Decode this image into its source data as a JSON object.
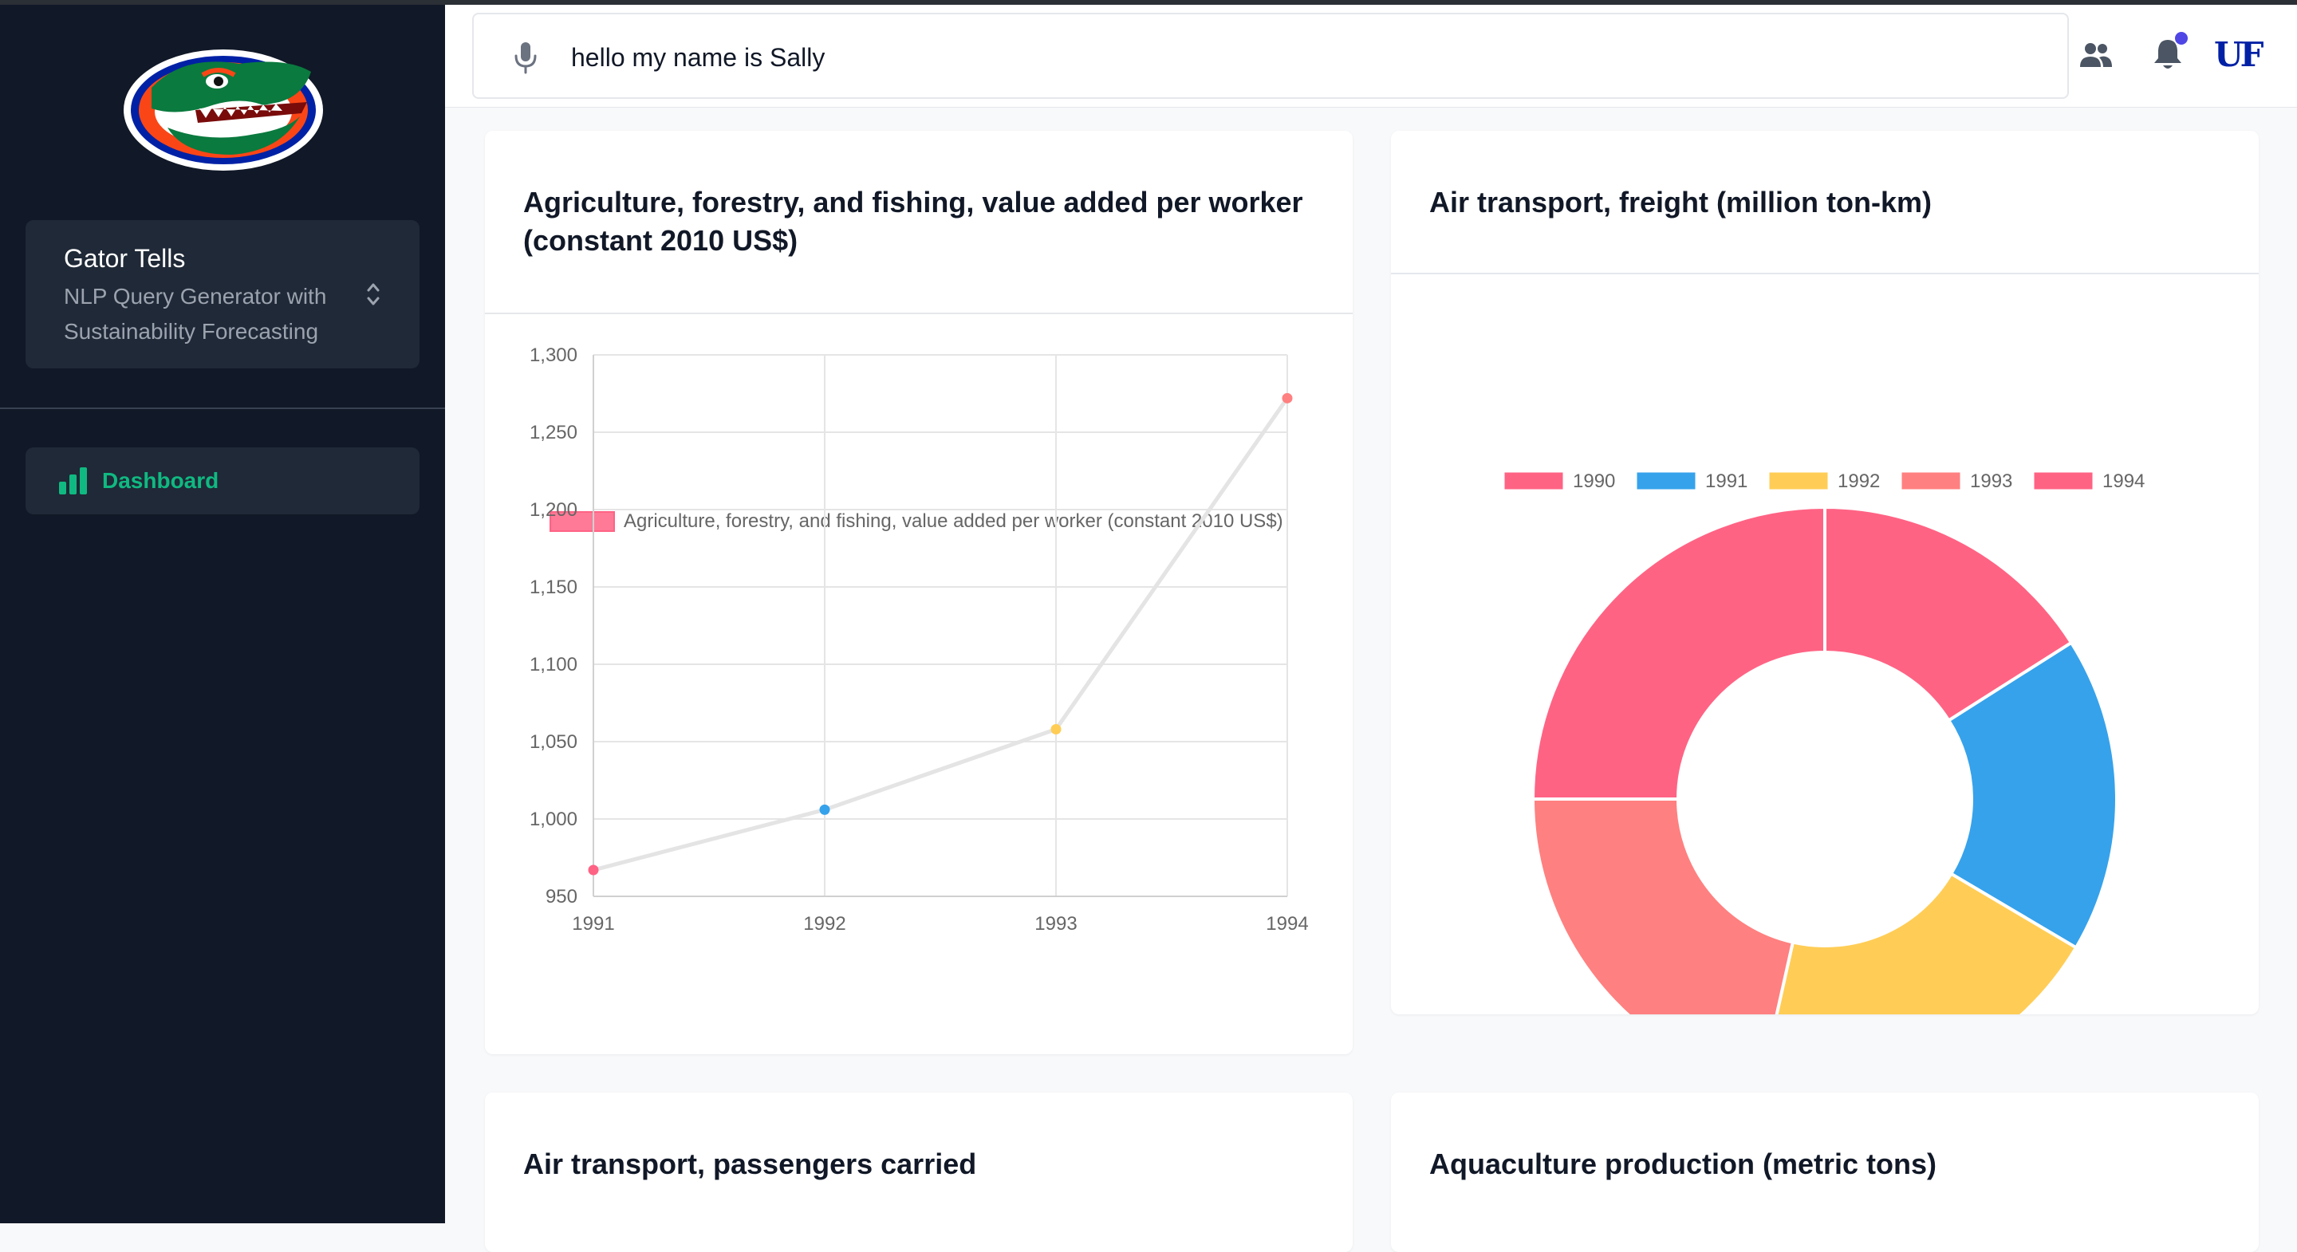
{
  "sidebar": {
    "brand_title": "Gator Tells",
    "brand_subtitle": "NLP Query Generator with Sustainability Forecasting",
    "nav_items": [
      {
        "label": "Dashboard",
        "icon": "bar-chart-icon"
      }
    ]
  },
  "header": {
    "search_value": "hello my name is Sally",
    "logo_text": "UF"
  },
  "colors": {
    "accent": "#10b981",
    "pink": "#ff6384",
    "blue": "#36a2eb",
    "yellow": "#ffcd56",
    "salmon": "#ff8080"
  },
  "cards": [
    {
      "title": "Agriculture, forestry, and fishing, value added per worker (constant 2010 US$)"
    },
    {
      "title": "Air transport, freight (million ton-km)"
    },
    {
      "title": "Air transport, passengers carried"
    },
    {
      "title": "Aquaculture production (metric tons)"
    }
  ],
  "chart_data": [
    {
      "type": "line",
      "title": "Agriculture, forestry, and fishing, value added per worker (constant 2010 US$)",
      "legend": [
        "Agriculture, forestry, and fishing, value added per worker (constant 2010 US$)"
      ],
      "x": [
        "1991",
        "1992",
        "1993",
        "1994"
      ],
      "series": [
        {
          "name": "Agriculture, forestry, and fishing, value added per worker (constant 2010 US$)",
          "values": [
            967,
            1006,
            1058,
            1272
          ]
        }
      ],
      "point_colors": [
        "#ff6384",
        "#36a2eb",
        "#ffcd56",
        "#ff8080"
      ],
      "ylim": [
        950,
        1300
      ],
      "yticks": [
        "1,300",
        "1,250",
        "1,200",
        "1,150",
        "1,100",
        "1,050",
        "1,000",
        "950"
      ],
      "ytick_values": [
        1300,
        1250,
        1200,
        1150,
        1100,
        1050,
        1000,
        950
      ]
    },
    {
      "type": "pie",
      "title": "Air transport, freight (million ton-km)",
      "categories": [
        "1990",
        "1991",
        "1992",
        "1993",
        "1994"
      ],
      "values": [
        16,
        17.5,
        20,
        21.5,
        25
      ],
      "colors": [
        "#ff6384",
        "#36a2eb",
        "#ffcd56",
        "#ff8080",
        "#ff6384"
      ],
      "legend_position": "top"
    }
  ]
}
